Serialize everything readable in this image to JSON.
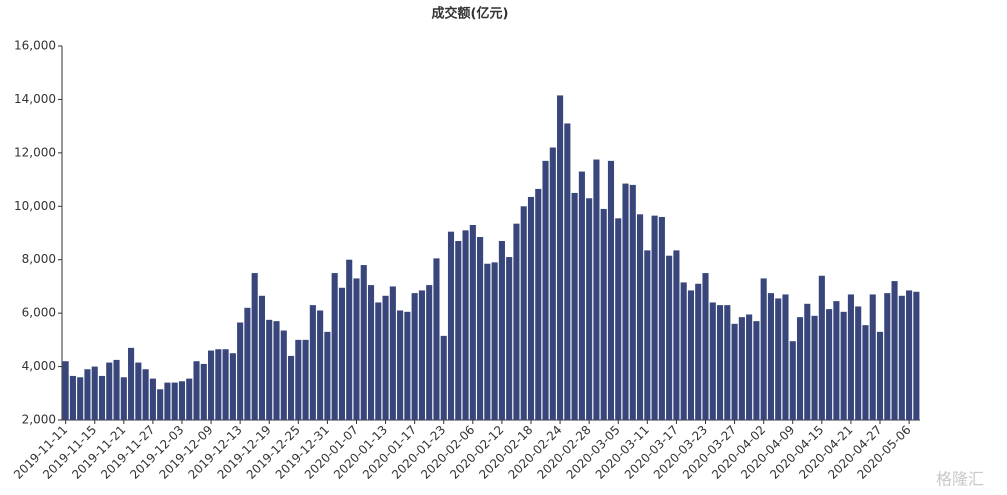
{
  "chart_data": {
    "type": "bar",
    "title": "成交额(亿元)",
    "categories": [
      "2019-11-11",
      null,
      null,
      null,
      "2019-11-15",
      null,
      null,
      null,
      "2019-11-21",
      null,
      null,
      null,
      "2019-11-27",
      null,
      null,
      null,
      "2019-12-03",
      null,
      null,
      null,
      "2019-12-09",
      null,
      null,
      null,
      "2019-12-13",
      null,
      null,
      null,
      "2019-12-19",
      null,
      null,
      null,
      "2019-12-25",
      null,
      null,
      null,
      "2019-12-31",
      null,
      null,
      null,
      "2020-01-07",
      null,
      null,
      null,
      "2020-01-13",
      null,
      null,
      null,
      "2020-01-17",
      null,
      null,
      null,
      "2020-01-23",
      null,
      null,
      null,
      "2020-02-06",
      null,
      null,
      null,
      "2020-02-12",
      null,
      null,
      null,
      "2020-02-18",
      null,
      null,
      null,
      "2020-02-24",
      null,
      null,
      null,
      "2020-02-28",
      null,
      null,
      null,
      "2020-03-05",
      null,
      null,
      null,
      "2020-03-11",
      null,
      null,
      null,
      "2020-03-17",
      null,
      null,
      null,
      "2020-03-23",
      null,
      null,
      null,
      "2020-03-27",
      null,
      null,
      null,
      "2020-04-02",
      null,
      null,
      null,
      "2020-04-09",
      null,
      null,
      null,
      "2020-04-15",
      null,
      null,
      null,
      "2020-04-21",
      null,
      null,
      null,
      "2020-04-27",
      null,
      null,
      null,
      "2020-05-06",
      null
    ],
    "values": [
      4200,
      3650,
      3600,
      3900,
      4000,
      3650,
      4150,
      4250,
      3600,
      4700,
      4150,
      3900,
      3550,
      3150,
      3400,
      3400,
      3450,
      3550,
      4200,
      4100,
      4600,
      4650,
      4650,
      4500,
      5650,
      6200,
      7500,
      6650,
      5750,
      5700,
      5350,
      4400,
      5000,
      5000,
      6300,
      6100,
      5300,
      7500,
      6950,
      8000,
      7300,
      7800,
      7050,
      6400,
      6650,
      7000,
      6100,
      6050,
      6750,
      6850,
      7050,
      8050,
      5150,
      9050,
      8700,
      9100,
      9300,
      8850,
      7850,
      7900,
      8700,
      8100,
      9350,
      10000,
      10350,
      10650,
      11700,
      12200,
      14150,
      13100,
      10500,
      11300,
      10300,
      11750,
      9900,
      11700,
      9550,
      10850,
      10800,
      9700,
      8350,
      9650,
      9600,
      8150,
      8350,
      7150,
      6850,
      7100,
      7500,
      6400,
      6300,
      6300,
      5600,
      5850,
      5950,
      5700,
      7300,
      6750,
      6550,
      6700,
      4950,
      5850,
      6350,
      5900,
      7400,
      6150,
      6450,
      6050,
      6700,
      6250,
      5550,
      6700,
      5300,
      6750,
      7200,
      6650,
      6850,
      6800
    ],
    "color": "#39467c",
    "ylim": [
      2000,
      16000
    ],
    "yticks": [
      {
        "value": 2000,
        "label": "2,000"
      },
      {
        "value": 4000,
        "label": "4,000"
      },
      {
        "value": 6000,
        "label": "6,000"
      },
      {
        "value": 8000,
        "label": "8,000"
      },
      {
        "value": 10000,
        "label": "10,000"
      },
      {
        "value": 12000,
        "label": "12,000"
      },
      {
        "value": 14000,
        "label": "14,000"
      },
      {
        "value": 16000,
        "label": "16,000"
      }
    ],
    "grid": false,
    "watermark": "格隆汇"
  }
}
